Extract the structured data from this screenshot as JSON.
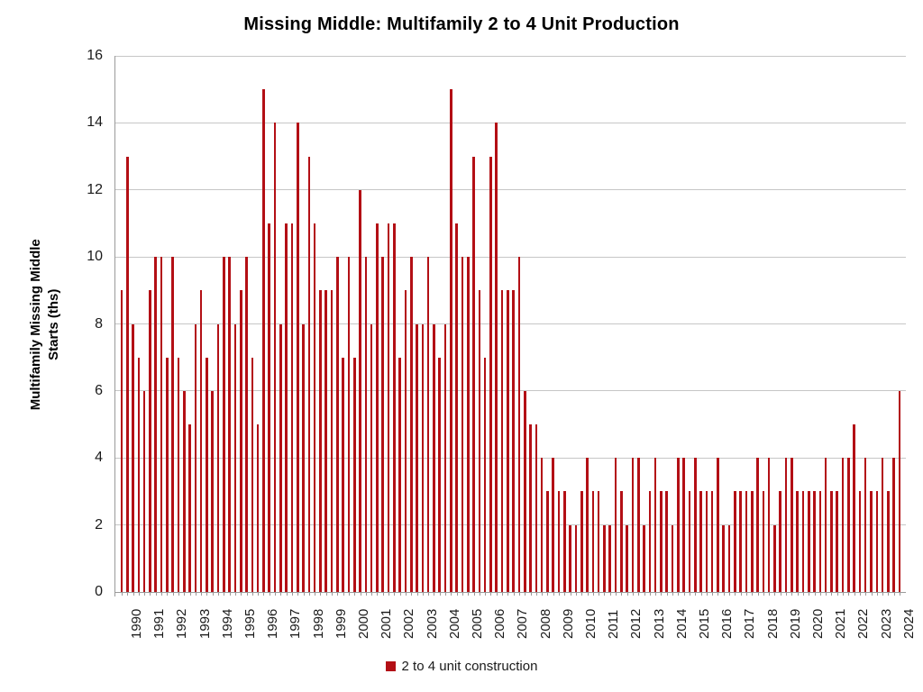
{
  "title": "Missing Middle: Multifamily 2 to 4 Unit Production",
  "y_axis_title_line1": "Multifamily Missing Middle",
  "y_axis_title_line2": "Starts (ths)",
  "legend": {
    "label": "2 to 4 unit construction",
    "swatch_color": "#b30f15"
  },
  "colors": {
    "bar": "#b30f15",
    "gridline": "#c6c6c6",
    "axis": "#9a9a9a",
    "text": "#1a1a1a"
  },
  "chart_data": {
    "type": "bar",
    "title": "Missing Middle: Multifamily 2 to 4 Unit Production",
    "xlabel": "",
    "ylabel": "Multifamily Missing Middle Starts (ths)",
    "ylim": [
      0,
      16
    ],
    "yticks": [
      0,
      2,
      4,
      6,
      8,
      10,
      12,
      14,
      16
    ],
    "grid": true,
    "legend_position": "bottom",
    "frequency": "quarterly",
    "start_period": "1990Q1",
    "end_period": "2024Q2",
    "x_year_labels": [
      "1990",
      "1991",
      "1992",
      "1993",
      "1994",
      "1995",
      "1996",
      "1997",
      "1998",
      "1999",
      "2000",
      "2001",
      "2002",
      "2003",
      "2004",
      "2005",
      "2006",
      "2007",
      "2008",
      "2009",
      "2010",
      "2011",
      "2012",
      "2013",
      "2014",
      "2015",
      "2016",
      "2017",
      "2018",
      "2019",
      "2020",
      "2021",
      "2022",
      "2023",
      "2024"
    ],
    "series": [
      {
        "name": "2 to 4 unit construction",
        "values_by_year": [
          {
            "year": "1990",
            "values": [
              9,
              13,
              8,
              7
            ]
          },
          {
            "year": "1991",
            "values": [
              6,
              9,
              10,
              10
            ]
          },
          {
            "year": "1992",
            "values": [
              7,
              10,
              7,
              6
            ]
          },
          {
            "year": "1993",
            "values": [
              5,
              8,
              9,
              7
            ]
          },
          {
            "year": "1994",
            "values": [
              6,
              8,
              10,
              10
            ]
          },
          {
            "year": "1995",
            "values": [
              8,
              9,
              10,
              7
            ]
          },
          {
            "year": "1996",
            "values": [
              5,
              15,
              11,
              14
            ]
          },
          {
            "year": "1997",
            "values": [
              8,
              11,
              11,
              14
            ]
          },
          {
            "year": "1998",
            "values": [
              8,
              13,
              11,
              9
            ]
          },
          {
            "year": "1999",
            "values": [
              9,
              9,
              10,
              7
            ]
          },
          {
            "year": "2000",
            "values": [
              10,
              7,
              12,
              10
            ]
          },
          {
            "year": "2001",
            "values": [
              8,
              11,
              10,
              11
            ]
          },
          {
            "year": "2002",
            "values": [
              11,
              7,
              9,
              10
            ]
          },
          {
            "year": "2003",
            "values": [
              8,
              8,
              10,
              8
            ]
          },
          {
            "year": "2004",
            "values": [
              7,
              8,
              15,
              11
            ]
          },
          {
            "year": "2005",
            "values": [
              10,
              10,
              13,
              9
            ]
          },
          {
            "year": "2006",
            "values": [
              7,
              13,
              14,
              9
            ]
          },
          {
            "year": "2007",
            "values": [
              9,
              9,
              10,
              6
            ]
          },
          {
            "year": "2008",
            "values": [
              5,
              5,
              4,
              3
            ]
          },
          {
            "year": "2009",
            "values": [
              4,
              3,
              3,
              2
            ]
          },
          {
            "year": "2010",
            "values": [
              2,
              3,
              4,
              3
            ]
          },
          {
            "year": "2011",
            "values": [
              3,
              2,
              2,
              4
            ]
          },
          {
            "year": "2012",
            "values": [
              3,
              2,
              4,
              4
            ]
          },
          {
            "year": "2013",
            "values": [
              2,
              3,
              4,
              3
            ]
          },
          {
            "year": "2014",
            "values": [
              3,
              2,
              4,
              4
            ]
          },
          {
            "year": "2015",
            "values": [
              3,
              4,
              3,
              3
            ]
          },
          {
            "year": "2016",
            "values": [
              3,
              4,
              2,
              2
            ]
          },
          {
            "year": "2017",
            "values": [
              3,
              3,
              3,
              3
            ]
          },
          {
            "year": "2018",
            "values": [
              4,
              3,
              4,
              2
            ]
          },
          {
            "year": "2019",
            "values": [
              3,
              4,
              4,
              3
            ]
          },
          {
            "year": "2020",
            "values": [
              3,
              3,
              3,
              3
            ]
          },
          {
            "year": "2021",
            "values": [
              4,
              3,
              3,
              4
            ]
          },
          {
            "year": "2022",
            "values": [
              4,
              5,
              3,
              4
            ]
          },
          {
            "year": "2023",
            "values": [
              3,
              3,
              4,
              3
            ]
          },
          {
            "year": "2024",
            "values": [
              4,
              6
            ]
          }
        ]
      }
    ]
  }
}
